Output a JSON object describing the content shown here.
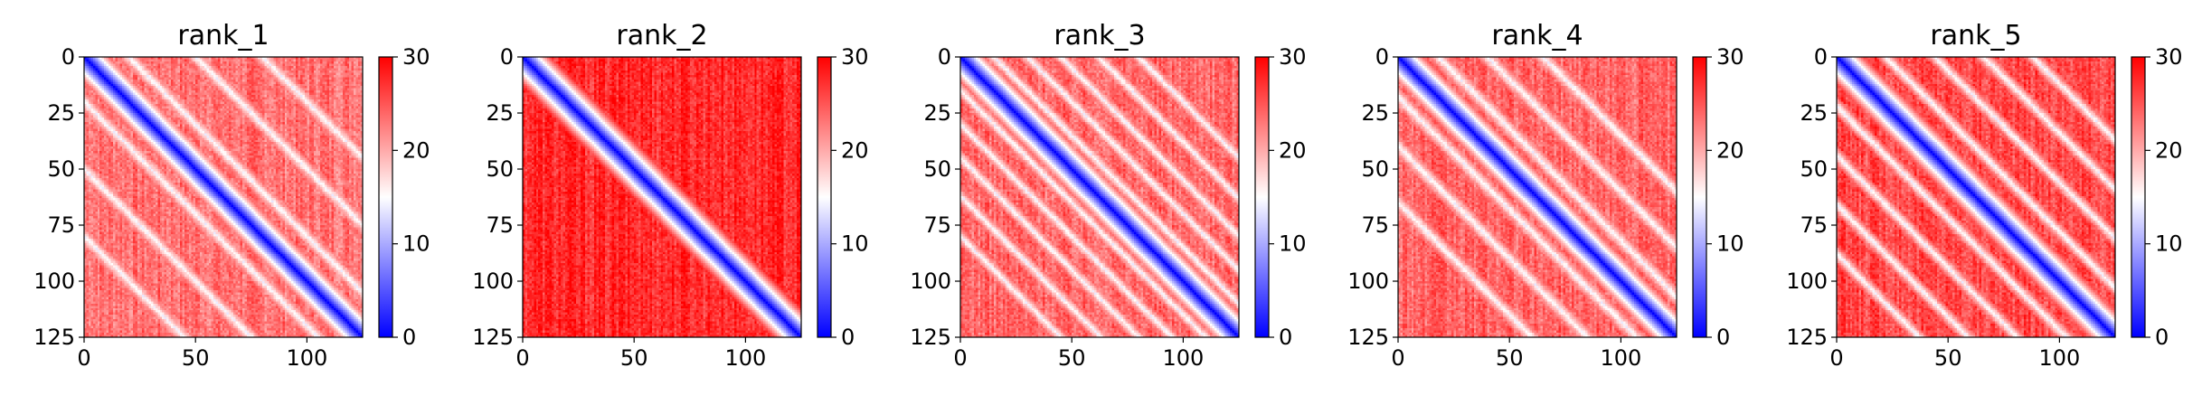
{
  "chart_data": [
    {
      "type": "heatmap",
      "title": "rank_1",
      "x_ticks": [
        0,
        50,
        100
      ],
      "y_ticks": [
        0,
        25,
        50,
        75,
        100,
        125
      ],
      "xlim": [
        0,
        125
      ],
      "ylim": [
        125,
        0
      ],
      "colorbar": {
        "range": [
          0,
          30
        ],
        "ticks": [
          0,
          10,
          20,
          30
        ],
        "colors": [
          "#0000ff",
          "#ffffff",
          "#ff0000"
        ]
      },
      "pattern": {
        "bands": [
          20,
          50,
          80
        ],
        "band_width": 6,
        "background": 0.78
      }
    },
    {
      "type": "heatmap",
      "title": "rank_2",
      "x_ticks": [
        0,
        50,
        100
      ],
      "y_ticks": [
        0,
        25,
        50,
        75,
        100,
        125
      ],
      "xlim": [
        0,
        125
      ],
      "ylim": [
        125,
        0
      ],
      "colorbar": {
        "range": [
          0,
          30
        ],
        "ticks": [
          0,
          10,
          20,
          30
        ],
        "colors": [
          "#0000ff",
          "#ffffff",
          "#ff0000"
        ]
      },
      "pattern": {
        "bands": [],
        "band_width": 6,
        "background": 0.92
      }
    },
    {
      "type": "heatmap",
      "title": "rank_3",
      "x_ticks": [
        0,
        50,
        100
      ],
      "y_ticks": [
        0,
        25,
        50,
        75,
        100,
        125
      ],
      "xlim": [
        0,
        125
      ],
      "ylim": [
        125,
        0
      ],
      "colorbar": {
        "range": [
          0,
          30
        ],
        "ticks": [
          0,
          10,
          20,
          30
        ],
        "colors": [
          "#0000ff",
          "#ffffff",
          "#ff0000"
        ]
      },
      "pattern": {
        "bands": [
          15,
          30,
          45,
          62,
          80
        ],
        "band_width": 5,
        "background": 0.8
      }
    },
    {
      "type": "heatmap",
      "title": "rank_4",
      "x_ticks": [
        0,
        50,
        100
      ],
      "y_ticks": [
        0,
        25,
        50,
        75,
        100,
        125
      ],
      "xlim": [
        0,
        125
      ],
      "ylim": [
        125,
        0
      ],
      "colorbar": {
        "range": [
          0,
          30
        ],
        "ticks": [
          0,
          10,
          20,
          30
        ],
        "colors": [
          "#0000ff",
          "#ffffff",
          "#ff0000"
        ]
      },
      "pattern": {
        "bands": [
          18,
          40,
          65
        ],
        "band_width": 6,
        "background": 0.8
      }
    },
    {
      "type": "heatmap",
      "title": "rank_5",
      "x_ticks": [
        0,
        50,
        100
      ],
      "y_ticks": [
        0,
        25,
        50,
        75,
        100,
        125
      ],
      "xlim": [
        0,
        125
      ],
      "ylim": [
        125,
        0
      ],
      "colorbar": {
        "range": [
          0,
          30
        ],
        "ticks": [
          0,
          10,
          20,
          30
        ],
        "colors": [
          "#0000ff",
          "#ffffff",
          "#ff0000"
        ]
      },
      "pattern": {
        "bands": [
          22,
          44,
          66,
          88
        ],
        "band_width": 5,
        "background": 0.86
      }
    }
  ]
}
